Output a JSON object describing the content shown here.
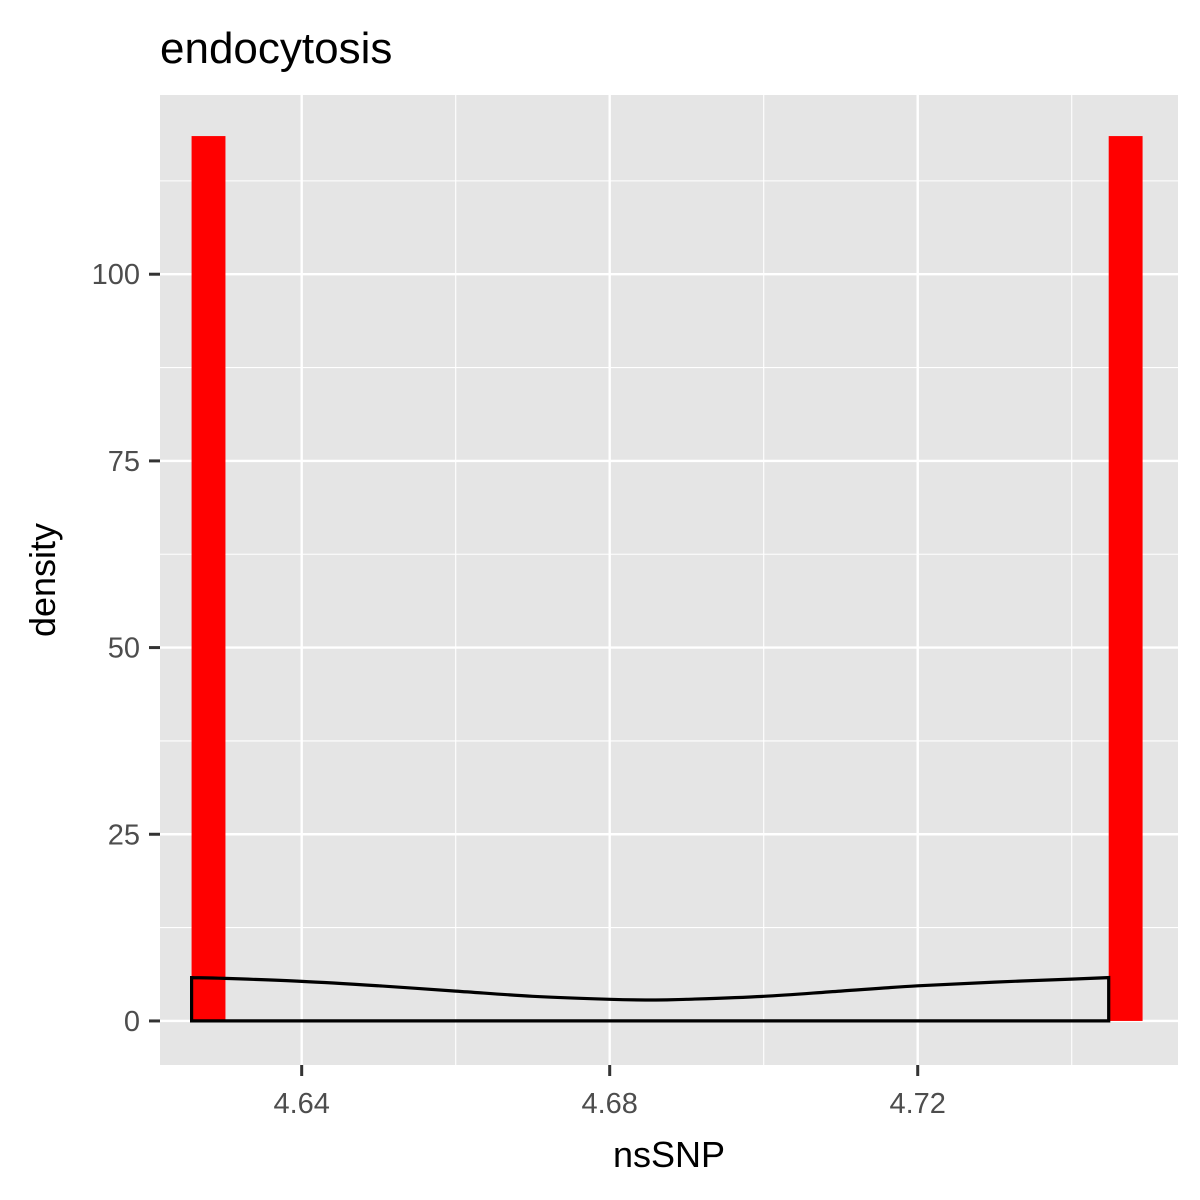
{
  "chart_data": {
    "type": "bar",
    "title": "endocytosis",
    "xlabel": "nsSNP",
    "ylabel": "density",
    "xlim": [
      4.6216,
      4.7538
    ],
    "ylim": [
      -5.9,
      124
    ],
    "x_ticks": [
      4.64,
      4.68,
      4.72
    ],
    "x_tick_labels": [
      "4.64",
      "4.68",
      "4.72"
    ],
    "y_ticks": [
      0,
      25,
      50,
      75,
      100
    ],
    "y_tick_labels": [
      "0",
      "25",
      "50",
      "75",
      "100"
    ],
    "histogram": {
      "bins": [
        {
          "x_start": 4.6257,
          "x_end": 4.6301,
          "density": 118.5
        },
        {
          "x_start": 4.7448,
          "x_end": 4.7492,
          "density": 118.5
        }
      ],
      "fill": "#ff0000"
    },
    "density_curve": {
      "x": [
        4.6257,
        4.63,
        4.64,
        4.65,
        4.66,
        4.67,
        4.68,
        4.686,
        4.69,
        4.7,
        4.71,
        4.72,
        4.73,
        4.74,
        4.7448
      ],
      "y": [
        5.8,
        5.7,
        5.3,
        4.7,
        4.0,
        3.3,
        2.9,
        2.8,
        2.9,
        3.3,
        4.0,
        4.7,
        5.2,
        5.6,
        5.8
      ],
      "stroke": "#000000"
    },
    "grid": true,
    "panel_background": "#e5e5e5",
    "grid_color": "#ffffff",
    "legend": "none"
  }
}
